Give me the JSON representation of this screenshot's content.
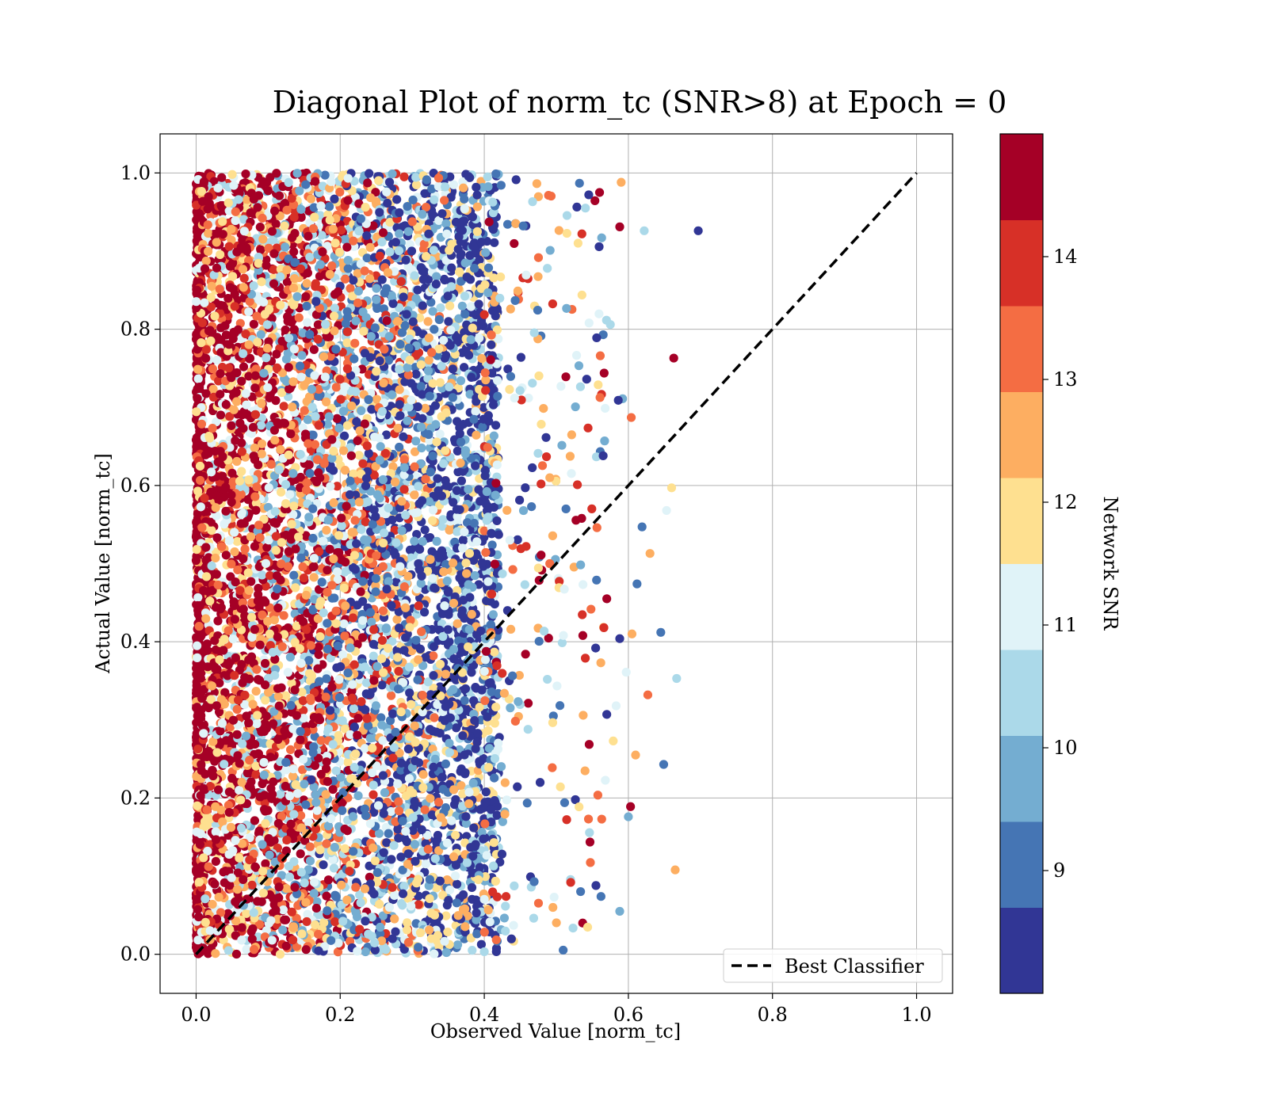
{
  "chart_data": {
    "type": "scatter",
    "title": "Diagonal Plot of norm_tc (SNR>8) at Epoch = 0",
    "xlabel": "Observed Value [norm_tc]",
    "ylabel": "Actual Value [norm_tc]",
    "xlim": [
      -0.05,
      1.05
    ],
    "ylim": [
      -0.05,
      1.05
    ],
    "x_ticks": [
      0.0,
      0.2,
      0.4,
      0.6,
      0.8,
      1.0
    ],
    "y_ticks": [
      0.0,
      0.2,
      0.4,
      0.6,
      0.8,
      1.0
    ],
    "x_tick_labels": [
      "0.0",
      "0.2",
      "0.4",
      "0.6",
      "0.8",
      "1.0"
    ],
    "y_tick_labels": [
      "0.0",
      "0.2",
      "0.4",
      "0.6",
      "0.8",
      "1.0"
    ],
    "grid": true,
    "legend": {
      "position": "lower-right",
      "entries": [
        "Best Classifier"
      ]
    },
    "reference_line": {
      "name": "Best Classifier",
      "style": "dashed",
      "color": "#000000",
      "x": [
        0.0,
        1.0
      ],
      "y": [
        0.0,
        1.0
      ]
    },
    "colorbar": {
      "label": "Network SNR",
      "range": [
        8.0,
        15.0
      ],
      "ticks": [
        9,
        10,
        11,
        12,
        13,
        14
      ],
      "tick_labels": [
        "9",
        "10",
        "11",
        "12",
        "13",
        "14"
      ],
      "colors": [
        "#313695",
        "#4575b4",
        "#74add1",
        "#abd9e9",
        "#e0f3f8",
        "#fee090",
        "#fdae61",
        "#f46d43",
        "#d73027",
        "#a50026"
      ]
    },
    "scatter_summary": {
      "observed_range": [
        0.0,
        0.7
      ],
      "actual_range": [
        0.0,
        1.0
      ],
      "dense_region_observed_max": 0.42,
      "column_at_zero_snr": 15.0
    },
    "points": [
      {
        "x": 0.697,
        "y": 0.926,
        "snr": 8.2
      },
      {
        "x": 0.622,
        "y": 0.926,
        "snr": 10.3
      },
      {
        "x": 0.588,
        "y": 0.931,
        "snr": 14.6
      },
      {
        "x": 0.663,
        "y": 0.763,
        "snr": 14.8
      },
      {
        "x": 0.592,
        "y": 0.711,
        "snr": 10.1
      },
      {
        "x": 0.604,
        "y": 0.687,
        "snr": 13.2
      },
      {
        "x": 0.575,
        "y": 0.806,
        "snr": 10.6
      },
      {
        "x": 0.619,
        "y": 0.547,
        "snr": 9.2
      },
      {
        "x": 0.653,
        "y": 0.568,
        "snr": 11.3
      },
      {
        "x": 0.66,
        "y": 0.597,
        "snr": 11.6
      },
      {
        "x": 0.63,
        "y": 0.513,
        "snr": 12.6
      },
      {
        "x": 0.612,
        "y": 0.474,
        "snr": 9.0
      },
      {
        "x": 0.645,
        "y": 0.412,
        "snr": 9.3
      },
      {
        "x": 0.667,
        "y": 0.353,
        "snr": 10.2
      },
      {
        "x": 0.627,
        "y": 0.332,
        "snr": 12.9
      },
      {
        "x": 0.649,
        "y": 0.243,
        "snr": 9.3
      },
      {
        "x": 0.603,
        "y": 0.189,
        "snr": 14.9
      },
      {
        "x": 0.6,
        "y": 0.176,
        "snr": 9.6
      },
      {
        "x": 0.665,
        "y": 0.108,
        "snr": 12.6
      },
      {
        "x": 0.588,
        "y": 0.055,
        "snr": 9.4
      },
      {
        "x": 0.56,
        "y": 0.975,
        "snr": 14.8
      },
      {
        "x": 0.545,
        "y": 0.972,
        "snr": 8.3
      },
      {
        "x": 0.59,
        "y": 0.988,
        "snr": 12.5
      },
      {
        "x": 0.556,
        "y": 0.789,
        "snr": 8.6
      },
      {
        "x": 0.561,
        "y": 0.766,
        "snr": 13.6
      },
      {
        "x": 0.586,
        "y": 0.709,
        "snr": 8.4
      },
      {
        "x": 0.565,
        "y": 0.638,
        "snr": 8.3
      },
      {
        "x": 0.567,
        "y": 0.657,
        "snr": 9.8
      },
      {
        "x": 0.57,
        "y": 0.455,
        "snr": 14.7
      },
      {
        "x": 0.566,
        "y": 0.418,
        "snr": 13.8
      },
      {
        "x": 0.588,
        "y": 0.404,
        "snr": 8.6
      },
      {
        "x": 0.605,
        "y": 0.41,
        "snr": 12.4
      },
      {
        "x": 0.597,
        "y": 0.361,
        "snr": 11.4
      },
      {
        "x": 0.579,
        "y": 0.273,
        "snr": 11.5
      },
      {
        "x": 0.61,
        "y": 0.255,
        "snr": 12.6
      },
      {
        "x": 0.583,
        "y": 0.318,
        "snr": 10.8
      },
      {
        "x": 0.57,
        "y": 0.307,
        "snr": 8.7
      },
      {
        "x": 0.563,
        "y": 0.173,
        "snr": 13.3
      },
      {
        "x": 0.562,
        "y": 0.074,
        "snr": 9.1
      },
      {
        "x": 0.555,
        "y": 0.088,
        "snr": 8.5
      }
    ]
  }
}
